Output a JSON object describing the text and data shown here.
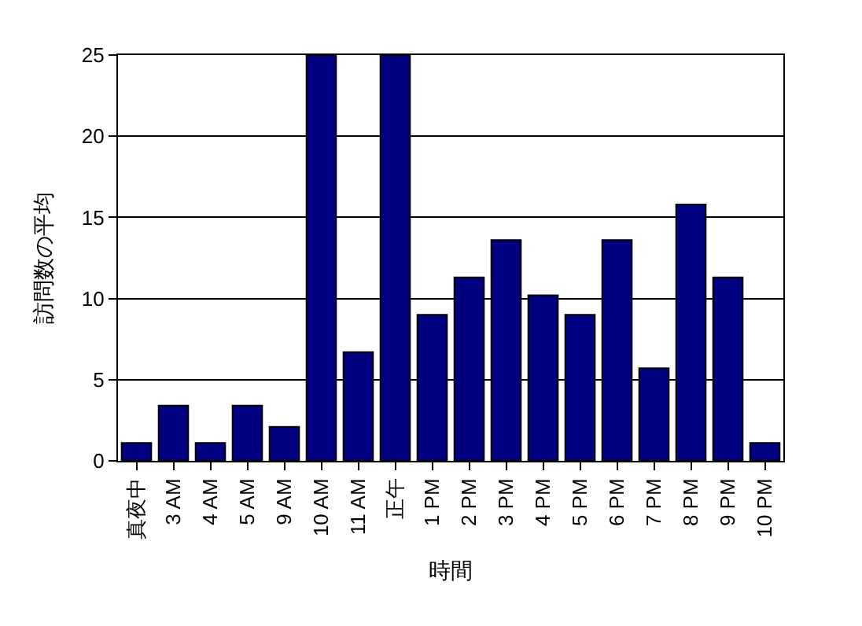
{
  "chart_data": {
    "type": "bar",
    "xlabel": "時間",
    "ylabel": "訪問数の平均",
    "categories": [
      "真夜中",
      "3 AM",
      "4 AM",
      "5 AM",
      "9 AM",
      "10 AM",
      "11 AM",
      "正午",
      "1 PM",
      "2 PM",
      "3 PM",
      "4 PM",
      "5 PM",
      "6 PM",
      "7 PM",
      "8 PM",
      "9 PM",
      "10 PM"
    ],
    "values": [
      1.1,
      3.4,
      1.1,
      3.4,
      2.1,
      25,
      6.7,
      25,
      9.0,
      11.3,
      13.6,
      10.2,
      9.0,
      13.6,
      5.7,
      15.8,
      11.3,
      1.1
    ],
    "color": "#000080",
    "ylim": [
      0,
      25
    ],
    "yticks": [
      0,
      5,
      10,
      15,
      20,
      25
    ],
    "grid": "y",
    "legend": false
  }
}
